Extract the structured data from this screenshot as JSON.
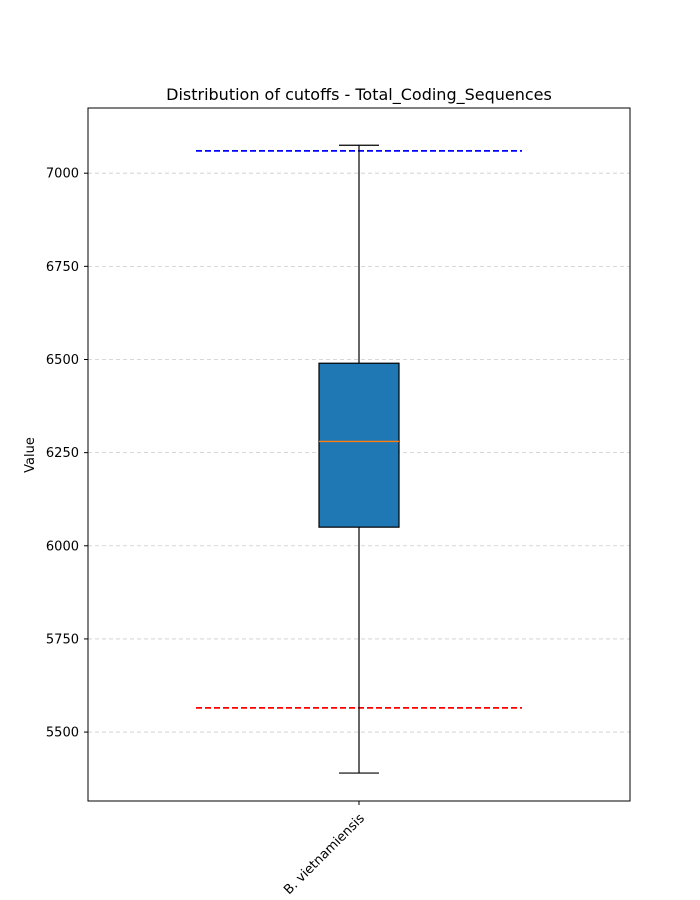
{
  "chart_data": {
    "type": "box",
    "title": "Distribution of cutoffs - Total_Coding_Sequences",
    "xlabel": "",
    "ylabel": "Value",
    "categories": [
      "B. vietnamiensis"
    ],
    "ylim": [
      5315,
      7175
    ],
    "yticks": [
      5500,
      5750,
      6000,
      6250,
      6500,
      6750,
      7000
    ],
    "grid": "y-dashed",
    "box": {
      "whisker_low": 5390,
      "q1": 6050,
      "median": 6280,
      "q3": 6490,
      "whisker_high": 7075
    },
    "reference_lines": [
      {
        "value": 7060,
        "color": "#0000ff",
        "style": "dashed"
      },
      {
        "value": 5565,
        "color": "#ff0000",
        "style": "dashed"
      }
    ],
    "colors": {
      "box_fill": "#1f77b4",
      "median": "#ff7f0e",
      "grid": "#cccccc"
    }
  }
}
